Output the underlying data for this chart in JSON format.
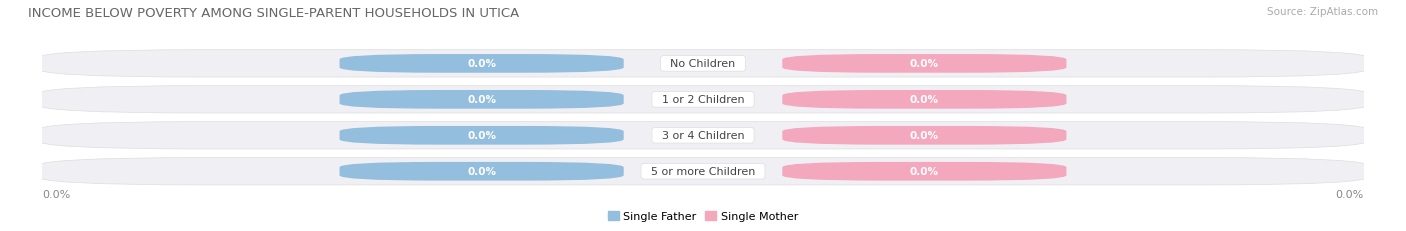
{
  "title": "INCOME BELOW POVERTY AMONG SINGLE-PARENT HOUSEHOLDS IN UTICA",
  "source": "Source: ZipAtlas.com",
  "categories": [
    "No Children",
    "1 or 2 Children",
    "3 or 4 Children",
    "5 or more Children"
  ],
  "single_father_values": [
    0.0,
    0.0,
    0.0,
    0.0
  ],
  "single_mother_values": [
    0.0,
    0.0,
    0.0,
    0.0
  ],
  "father_color": "#94bedd",
  "mother_color": "#f4a8be",
  "row_bg_color": "#f0f0f4",
  "title_fontsize": 9.5,
  "source_fontsize": 7.5,
  "label_fontsize": 8,
  "value_fontsize": 7.5,
  "legend_fontsize": 8,
  "background_color": "#ffffff",
  "axis_label_color": "#888888",
  "title_color": "#666666",
  "category_color": "#444444"
}
